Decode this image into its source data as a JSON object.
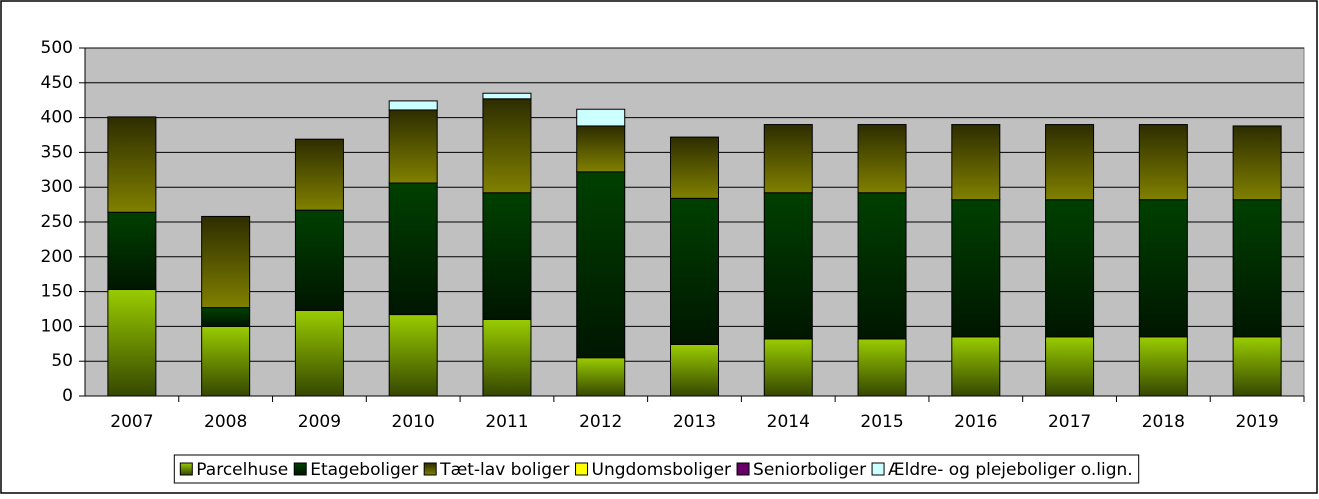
{
  "chart_data": {
    "type": "stacked_bar",
    "categories": [
      "2007",
      "2008",
      "2009",
      "2010",
      "2011",
      "2012",
      "2013",
      "2014",
      "2015",
      "2016",
      "2017",
      "2018",
      "2019"
    ],
    "series": [
      {
        "name": "Parcelhuse",
        "color": "#99cc00",
        "values": [
          153,
          100,
          123,
          117,
          110,
          55,
          74,
          82,
          82,
          85,
          85,
          85,
          85
        ]
      },
      {
        "name": "Etageboliger",
        "color": "#004000",
        "values": [
          111,
          27,
          144,
          189,
          182,
          267,
          210,
          210,
          210,
          197,
          197,
          197,
          197
        ]
      },
      {
        "name": "Tæt-lav boliger",
        "color": "#808000",
        "values": [
          137,
          131,
          102,
          105,
          135,
          66,
          88,
          98,
          98,
          108,
          108,
          108,
          106
        ]
      },
      {
        "name": "Ungdomsboliger",
        "color": "#ffff00",
        "values": [
          0,
          0,
          0,
          0,
          0,
          0,
          0,
          0,
          0,
          0,
          0,
          0,
          0
        ]
      },
      {
        "name": "Seniorboliger",
        "color": "#660066",
        "values": [
          0,
          0,
          0,
          0,
          0,
          0,
          0,
          0,
          0,
          0,
          0,
          0,
          0
        ]
      },
      {
        "name": "Ældre- og plejeboliger o.lign.",
        "color": "#ccffff",
        "values": [
          0,
          0,
          0,
          13,
          8,
          24,
          0,
          0,
          0,
          0,
          0,
          0,
          0
        ]
      }
    ],
    "ylim": [
      0,
      500
    ],
    "yticks": [
      0,
      50,
      100,
      150,
      200,
      250,
      300,
      350,
      400,
      450,
      500
    ],
    "grid": true,
    "plot_background": "#c0c0c0",
    "legend": "bottom"
  }
}
